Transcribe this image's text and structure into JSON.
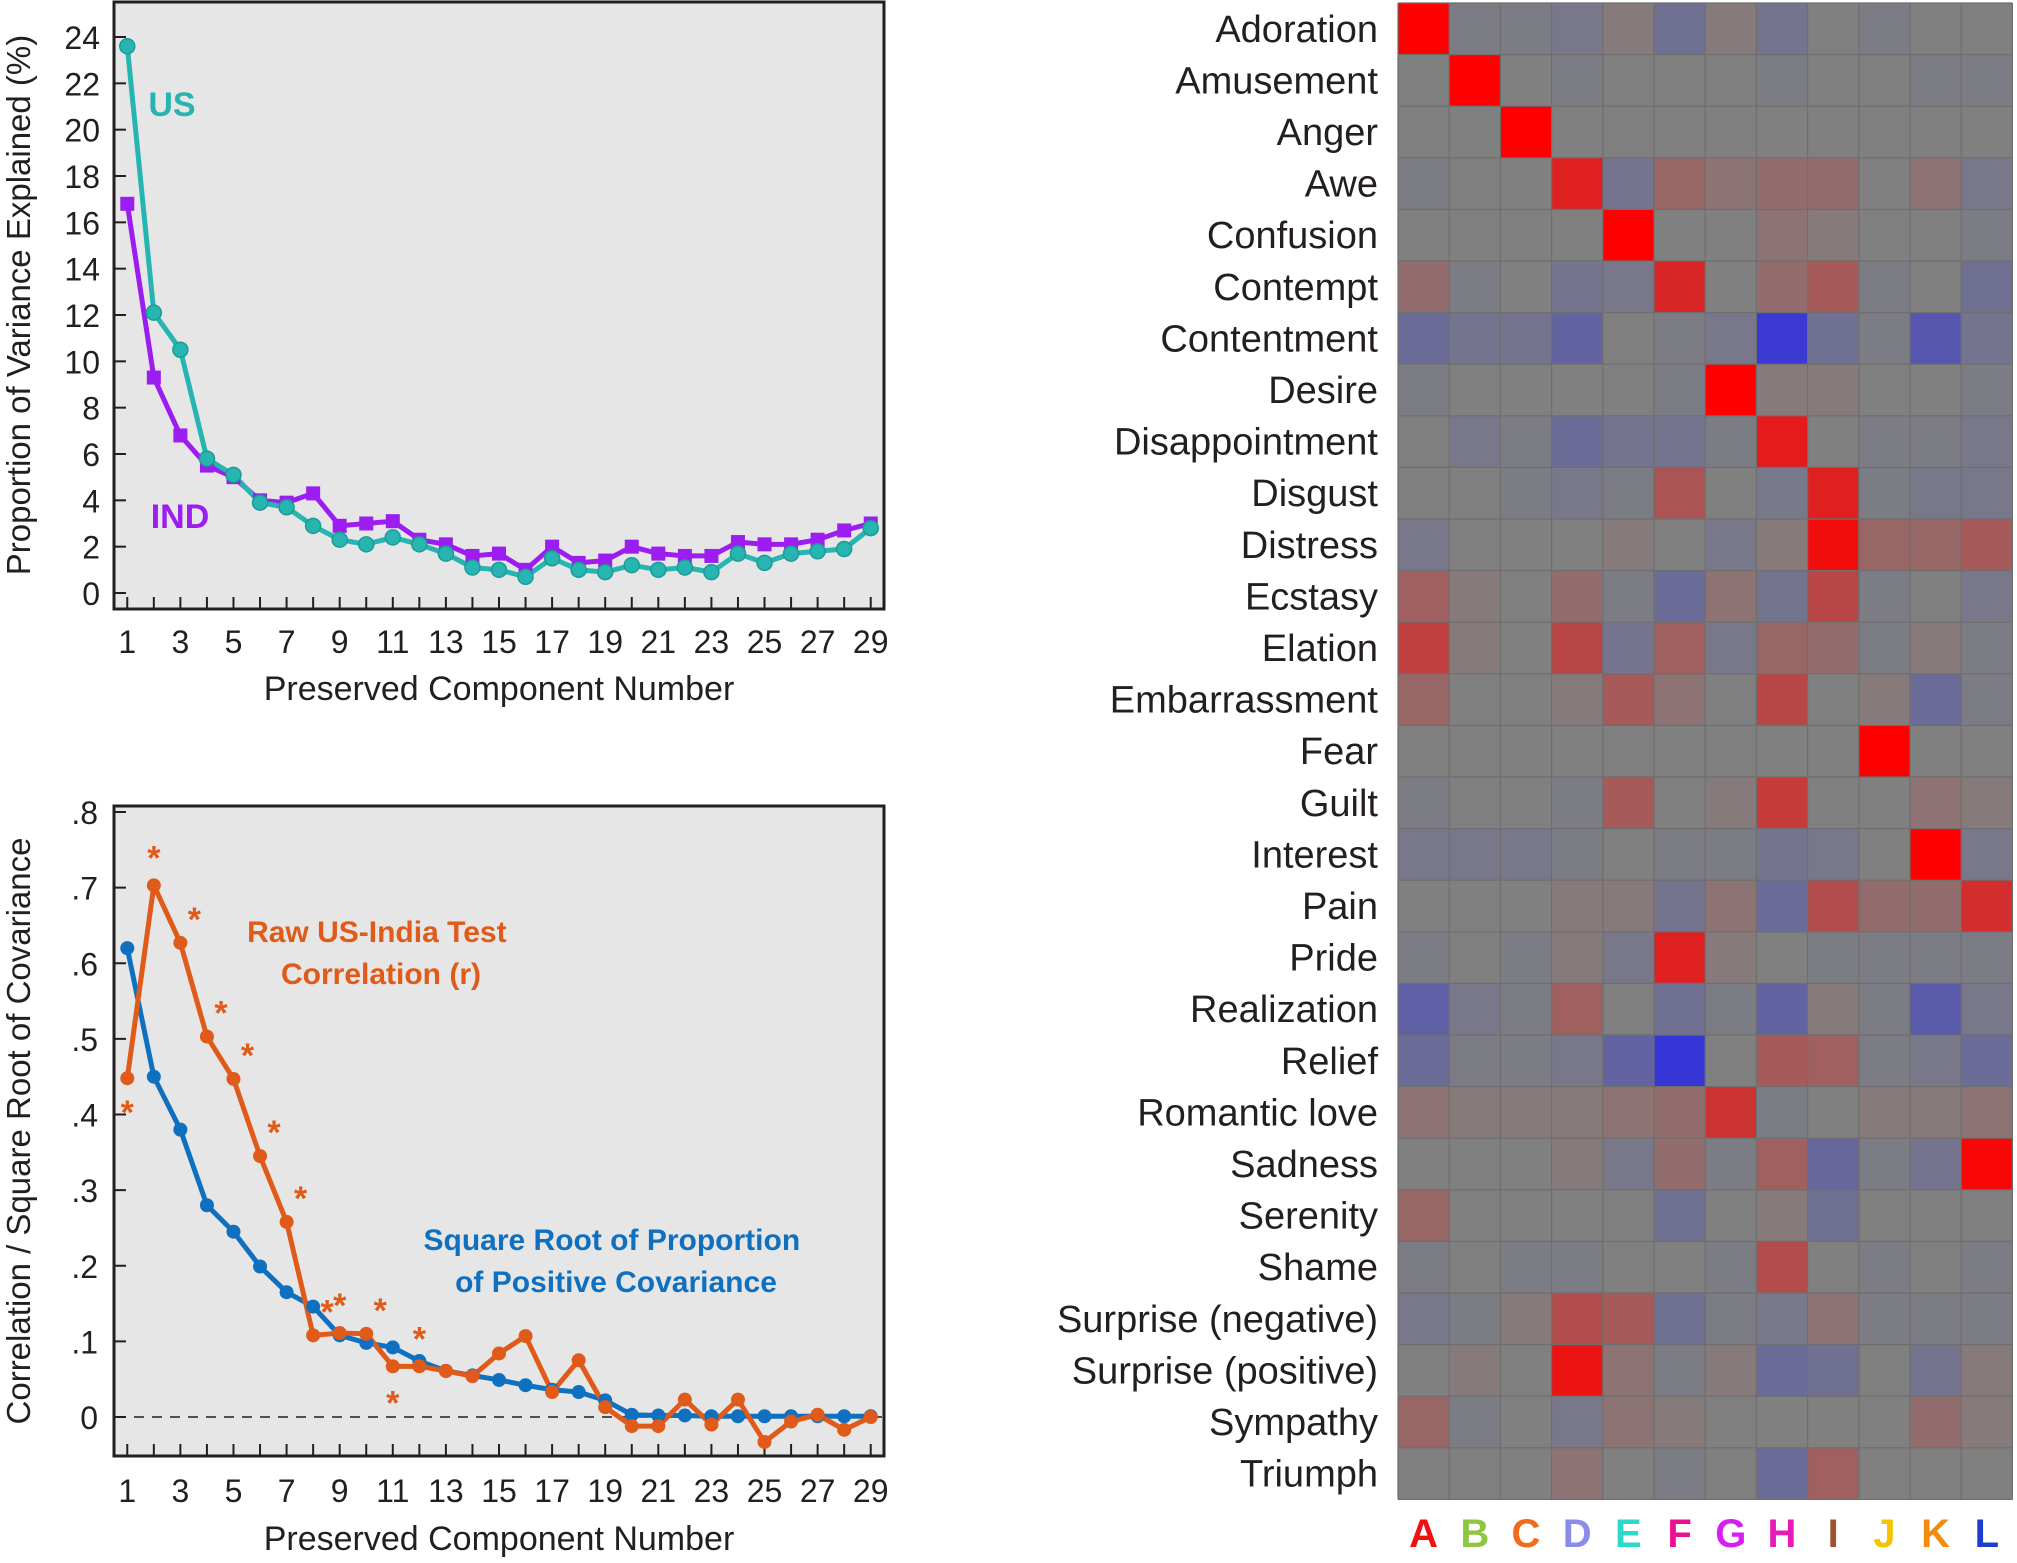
{
  "chart_data": [
    {
      "type": "line",
      "xlabel": "Preserved Component Number",
      "ylabel": "Proportion of Variance Explained (%)",
      "ylim": [
        0,
        25
      ],
      "yticks": [
        0,
        2,
        4,
        6,
        8,
        10,
        12,
        14,
        16,
        18,
        20,
        22,
        24
      ],
      "xlim": [
        0.5,
        29.5
      ],
      "xticks": [
        1,
        3,
        5,
        7,
        9,
        11,
        13,
        15,
        17,
        19,
        21,
        23,
        25,
        27,
        29
      ],
      "grid": false,
      "x": [
        1,
        2,
        3,
        4,
        5,
        6,
        7,
        8,
        9,
        10,
        11,
        12,
        13,
        14,
        15,
        16,
        17,
        18,
        19,
        20,
        21,
        22,
        23,
        24,
        25,
        26,
        27,
        28,
        29
      ],
      "series": [
        {
          "name": "US",
          "color": "#26b5b0",
          "marker": "circle",
          "values": [
            23.6,
            12.1,
            10.5,
            5.8,
            5.1,
            3.9,
            3.7,
            2.9,
            2.3,
            2.1,
            2.4,
            2.1,
            1.7,
            1.1,
            1.0,
            0.7,
            1.5,
            1.0,
            0.9,
            1.2,
            1.0,
            1.1,
            0.9,
            1.7,
            1.3,
            1.7,
            1.8,
            1.9,
            2.8
          ]
        },
        {
          "name": "IND",
          "color": "#9b1df0",
          "marker": "square",
          "values": [
            16.8,
            9.3,
            6.8,
            5.5,
            5.0,
            4.0,
            3.9,
            4.3,
            2.9,
            3.0,
            3.1,
            2.3,
            2.1,
            1.6,
            1.7,
            1.0,
            2.0,
            1.3,
            1.4,
            2.0,
            1.7,
            1.6,
            1.6,
            2.2,
            2.1,
            2.1,
            2.3,
            2.7,
            3.0
          ]
        }
      ]
    },
    {
      "type": "line",
      "xlabel": "Preserved Component Number",
      "ylabel": "Correlation / Square Root of Covariance",
      "ylim": [
        -0.055,
        0.805
      ],
      "yticks": [
        0,
        0.1,
        0.2,
        0.3,
        0.4,
        0.5,
        0.6,
        0.7,
        0.8
      ],
      "yticklabels": [
        "0",
        ".1",
        ".2",
        ".3",
        ".4",
        ".5",
        ".6",
        ".7",
        ".8"
      ],
      "xlim": [
        0.5,
        29.5
      ],
      "xticks": [
        1,
        3,
        5,
        7,
        9,
        11,
        13,
        15,
        17,
        19,
        21,
        23,
        25,
        27,
        29
      ],
      "grid": false,
      "reference_line": {
        "y": 0,
        "style": "dashed"
      },
      "x": [
        1,
        2,
        3,
        4,
        5,
        6,
        7,
        8,
        9,
        10,
        11,
        12,
        13,
        14,
        15,
        16,
        17,
        18,
        19,
        20,
        21,
        22,
        23,
        24,
        25,
        26,
        27,
        28,
        29
      ],
      "series": [
        {
          "name": "Raw US-India Test Correlation (r)",
          "label_lines": [
            "Raw US-India Test",
            "Correlation (r)"
          ],
          "color": "#e05a1a",
          "values": [
            0.448,
            0.703,
            0.627,
            0.503,
            0.447,
            0.345,
            0.258,
            0.108,
            0.111,
            0.11,
            0.067,
            0.067,
            0.061,
            0.054,
            0.084,
            0.107,
            0.033,
            0.075,
            0.013,
            -0.012,
            -0.012,
            0.023,
            -0.01,
            0.023,
            -0.033,
            -0.006,
            0.003,
            -0.017,
            0.0
          ],
          "significant": [
            true,
            true,
            true,
            true,
            true,
            true,
            true,
            true,
            true,
            true,
            true,
            true,
            false,
            false,
            false,
            false,
            false,
            false,
            false,
            false,
            false,
            false,
            false,
            false,
            false,
            false,
            false,
            false,
            false
          ],
          "significance_marker": "*"
        },
        {
          "name": "Square Root of Proportion of Positive Covariance",
          "label_lines": [
            "Square Root of Proportion",
            "of Positive Covariance"
          ],
          "color": "#1070c0",
          "values": [
            0.62,
            0.45,
            0.38,
            0.28,
            0.245,
            0.199,
            0.165,
            0.146,
            0.108,
            0.098,
            0.092,
            0.074,
            0.061,
            0.055,
            0.049,
            0.042,
            0.036,
            0.033,
            0.022,
            0.003,
            0.002,
            0.002,
            0.001,
            0.001,
            0.001,
            0.001,
            0.001,
            0.001,
            0.001
          ]
        }
      ]
    },
    {
      "type": "heatmap",
      "rows": [
        "Adoration",
        "Amusement",
        "Anger",
        "Awe",
        "Confusion",
        "Contempt",
        "Contentment",
        "Desire",
        "Disappointment",
        "Disgust",
        "Distress",
        "Ecstasy",
        "Elation",
        "Embarrassment",
        "Fear",
        "Guilt",
        "Interest",
        "Pain",
        "Pride",
        "Realization",
        "Relief",
        "Romantic love",
        "Sadness",
        "Serenity",
        "Shame",
        "Surprise (negative)",
        "Surprise (positive)",
        "Sympathy",
        "Triumph"
      ],
      "columns": [
        "A",
        "B",
        "C",
        "D",
        "E",
        "F",
        "G",
        "H",
        "I",
        "J",
        "K",
        "L"
      ],
      "column_colors": [
        "#ee1111",
        "#8ec63f",
        "#f26b1d",
        "#8b8be8",
        "#2ed8c8",
        "#e8118f",
        "#d61ef0",
        "#e51cb8",
        "#a0522d",
        "#f5c400",
        "#f28c0c",
        "#1f3dcc"
      ],
      "value_range": [
        -1,
        1
      ],
      "colormap": {
        "negative": "#2e2ee0",
        "zero": "#808080",
        "positive": "#ff0000"
      },
      "values": [
        [
          1.0,
          -0.05,
          -0.05,
          -0.1,
          0.05,
          -0.2,
          0.05,
          -0.15,
          0.0,
          -0.05,
          0.0,
          0.0
        ],
        [
          0.0,
          1.0,
          0.0,
          -0.05,
          0.0,
          0.0,
          0.0,
          -0.05,
          0.0,
          0.0,
          -0.05,
          -0.05
        ],
        [
          0.0,
          0.0,
          1.0,
          0.0,
          0.0,
          0.0,
          0.0,
          0.0,
          0.0,
          0.0,
          0.0,
          0.0
        ],
        [
          -0.05,
          0.0,
          0.0,
          0.75,
          -0.15,
          0.2,
          0.1,
          0.15,
          0.15,
          0.0,
          0.1,
          -0.1
        ],
        [
          0.0,
          0.0,
          0.0,
          0.0,
          1.0,
          0.0,
          0.0,
          0.1,
          0.05,
          0.0,
          0.0,
          -0.05
        ],
        [
          0.15,
          -0.05,
          0.0,
          -0.15,
          -0.1,
          0.7,
          0.0,
          0.15,
          0.3,
          -0.05,
          0.0,
          -0.2
        ],
        [
          -0.25,
          -0.15,
          -0.15,
          -0.35,
          0.0,
          -0.05,
          -0.1,
          -0.85,
          -0.2,
          -0.05,
          -0.5,
          -0.15
        ],
        [
          -0.05,
          0.0,
          0.0,
          0.0,
          0.0,
          -0.05,
          1.0,
          0.05,
          0.05,
          0.0,
          0.0,
          -0.05
        ],
        [
          0.0,
          -0.1,
          -0.05,
          -0.25,
          -0.15,
          -0.15,
          -0.05,
          0.8,
          0.0,
          -0.05,
          -0.05,
          -0.1
        ],
        [
          0.0,
          0.0,
          -0.05,
          -0.1,
          -0.05,
          0.35,
          0.0,
          -0.1,
          0.75,
          -0.05,
          -0.1,
          -0.1
        ],
        [
          -0.1,
          0.0,
          0.0,
          0.0,
          0.05,
          0.0,
          -0.1,
          0.05,
          0.9,
          0.2,
          0.2,
          0.3
        ],
        [
          0.25,
          0.05,
          0.0,
          0.15,
          -0.05,
          -0.25,
          0.1,
          -0.15,
          0.45,
          -0.05,
          0.0,
          -0.1
        ],
        [
          0.5,
          0.05,
          0.0,
          0.45,
          -0.15,
          0.25,
          -0.1,
          0.2,
          0.15,
          -0.05,
          0.05,
          -0.05
        ],
        [
          0.2,
          0.0,
          0.0,
          0.05,
          0.3,
          0.1,
          0.0,
          0.45,
          0.0,
          0.05,
          -0.25,
          -0.05
        ],
        [
          0.0,
          0.0,
          0.0,
          0.0,
          0.0,
          0.0,
          0.0,
          0.0,
          0.0,
          1.0,
          0.0,
          0.0
        ],
        [
          -0.05,
          0.0,
          0.0,
          -0.05,
          0.3,
          0.0,
          0.05,
          0.55,
          0.0,
          0.0,
          0.1,
          0.05
        ],
        [
          -0.1,
          -0.1,
          -0.1,
          -0.05,
          0.0,
          -0.05,
          -0.05,
          -0.15,
          -0.1,
          0.0,
          1.0,
          -0.1
        ],
        [
          0.0,
          0.0,
          0.0,
          0.05,
          0.05,
          -0.15,
          0.1,
          -0.25,
          0.4,
          0.15,
          0.15,
          0.65
        ],
        [
          -0.05,
          0.0,
          -0.05,
          0.05,
          -0.1,
          0.75,
          0.05,
          0.0,
          -0.05,
          -0.05,
          -0.05,
          -0.05
        ],
        [
          -0.4,
          -0.1,
          -0.05,
          0.25,
          0.0,
          -0.2,
          -0.05,
          -0.35,
          0.05,
          -0.05,
          -0.45,
          -0.1
        ],
        [
          -0.25,
          -0.05,
          -0.05,
          -0.1,
          -0.35,
          -0.9,
          0.0,
          0.3,
          0.25,
          -0.05,
          -0.1,
          -0.25
        ],
        [
          0.1,
          0.05,
          0.05,
          0.05,
          0.1,
          0.15,
          0.6,
          -0.05,
          0.0,
          0.05,
          0.05,
          0.1
        ],
        [
          0.0,
          0.0,
          0.0,
          0.05,
          -0.1,
          0.15,
          -0.05,
          0.25,
          -0.3,
          -0.05,
          -0.15,
          0.95
        ],
        [
          0.2,
          0.0,
          0.0,
          0.0,
          0.0,
          -0.2,
          0.0,
          0.05,
          -0.2,
          0.0,
          0.0,
          0.0
        ],
        [
          -0.05,
          0.0,
          -0.05,
          -0.05,
          0.0,
          0.0,
          -0.05,
          0.4,
          0.0,
          -0.05,
          0.0,
          -0.05
        ],
        [
          -0.1,
          -0.05,
          0.05,
          0.4,
          0.3,
          -0.2,
          -0.05,
          -0.1,
          0.1,
          -0.05,
          -0.05,
          -0.05
        ],
        [
          0.0,
          0.05,
          0.0,
          0.85,
          0.1,
          -0.05,
          0.05,
          -0.25,
          -0.2,
          0.0,
          -0.15,
          0.05
        ],
        [
          0.2,
          -0.05,
          0.0,
          -0.1,
          0.1,
          0.05,
          0.0,
          0.0,
          0.0,
          0.0,
          0.15,
          0.05
        ],
        [
          0.0,
          0.0,
          0.0,
          0.1,
          0.0,
          -0.05,
          0.0,
          -0.25,
          0.25,
          0.0,
          0.0,
          0.0
        ]
      ]
    }
  ]
}
